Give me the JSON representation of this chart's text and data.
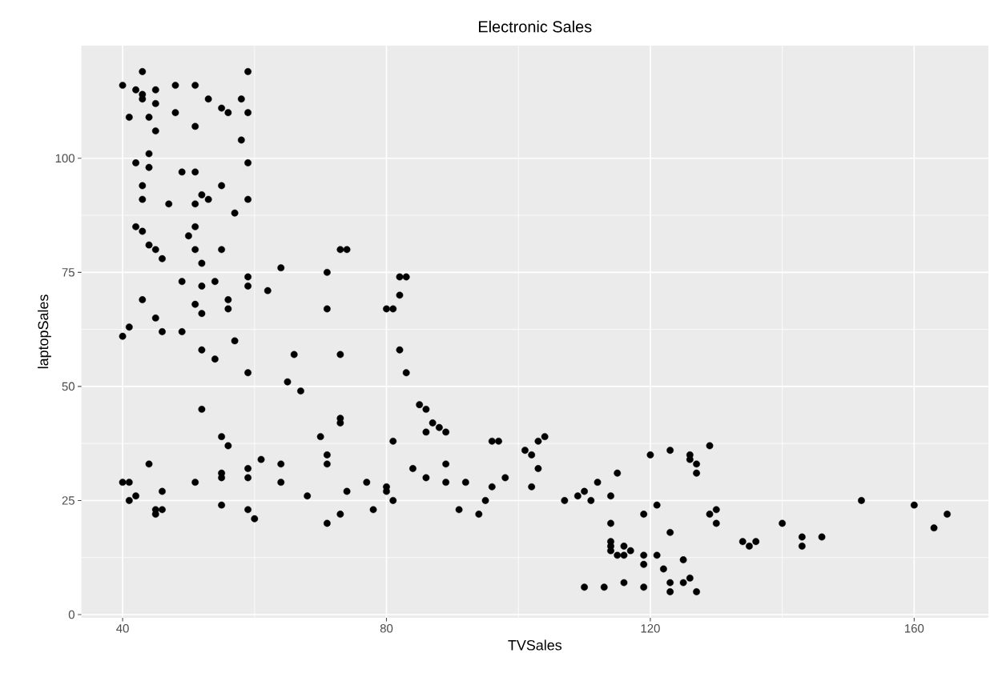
{
  "chart_data": {
    "type": "scatter",
    "title": "Electronic Sales",
    "xlabel": "TVSales",
    "ylabel": "laptopSales",
    "color": "#000000",
    "marker": "circle",
    "grid": true,
    "xlim": [
      33.75,
      171.25
    ],
    "ylim": [
      -0.7,
      124.7
    ],
    "xticks": [
      40,
      80,
      120,
      160
    ],
    "yticks": [
      0,
      25,
      50,
      75,
      100
    ],
    "x": [
      40,
      43,
      42,
      43,
      43,
      45,
      45,
      41,
      44,
      45,
      48,
      48,
      51,
      51,
      53,
      55,
      56,
      58,
      59,
      59,
      58,
      44,
      42,
      44,
      59,
      49,
      51,
      43,
      55,
      43,
      47,
      51,
      52,
      53,
      59,
      57,
      42,
      43,
      51,
      50,
      44,
      45,
      51,
      55,
      46,
      52,
      59,
      59,
      49,
      54,
      52,
      43,
      56,
      51,
      56,
      52,
      45,
      41,
      46,
      49,
      40,
      57,
      52,
      54,
      59,
      52,
      55,
      56,
      44,
      55,
      55,
      59,
      59,
      40,
      41,
      51,
      42,
      41,
      46,
      45,
      46,
      45,
      55,
      59,
      60,
      61,
      64,
      62,
      64,
      64,
      65,
      66,
      67,
      68,
      70,
      71,
      71,
      71,
      71,
      71,
      73,
      74,
      73,
      73,
      73,
      73,
      74,
      77,
      78,
      80,
      81,
      80,
      80,
      81,
      81,
      82,
      83,
      82,
      82,
      83,
      84,
      85,
      86,
      86,
      86,
      87,
      88,
      89,
      89,
      89,
      91,
      92,
      94,
      95,
      96,
      97,
      96,
      98,
      101,
      102,
      102,
      103,
      103,
      104,
      107,
      109,
      110,
      111,
      112,
      110,
      113,
      114,
      114,
      114,
      114,
      114,
      115,
      115,
      116,
      116,
      116,
      117,
      119,
      119,
      119,
      119,
      120,
      121,
      121,
      122,
      123,
      123,
      123,
      123,
      125,
      125,
      126,
      126,
      126,
      127,
      127,
      127,
      129,
      129,
      130,
      130,
      134,
      135,
      136,
      140,
      143,
      143,
      146,
      152,
      160,
      163,
      165
    ],
    "values": [
      116,
      119,
      115,
      114,
      113,
      115,
      112,
      109,
      109,
      106,
      116,
      110,
      116,
      107,
      113,
      111,
      110,
      113,
      119,
      110,
      104,
      101,
      99,
      98,
      99,
      97,
      97,
      94,
      94,
      91,
      90,
      90,
      92,
      91,
      91,
      88,
      85,
      84,
      85,
      83,
      81,
      80,
      80,
      80,
      78,
      77,
      74,
      72,
      73,
      73,
      72,
      69,
      69,
      68,
      67,
      66,
      65,
      63,
      62,
      62,
      61,
      60,
      58,
      56,
      53,
      45,
      39,
      37,
      33,
      31,
      30,
      32,
      30,
      29,
      29,
      29,
      26,
      25,
      27,
      23,
      23,
      22,
      24,
      23,
      21,
      34,
      76,
      71,
      33,
      29,
      51,
      57,
      49,
      26,
      39,
      75,
      67,
      35,
      33,
      20,
      80,
      80,
      57,
      43,
      42,
      22,
      27,
      29,
      23,
      67,
      67,
      28,
      27,
      38,
      25,
      74,
      74,
      70,
      58,
      53,
      32,
      46,
      45,
      40,
      30,
      42,
      41,
      40,
      33,
      29,
      23,
      29,
      22,
      25,
      38,
      38,
      28,
      30,
      36,
      35,
      28,
      38,
      32,
      39,
      25,
      26,
      27,
      25,
      29,
      6,
      6,
      26,
      20,
      16,
      15,
      14,
      31,
      13,
      15,
      13,
      7,
      14,
      22,
      13,
      11,
      6,
      35,
      24,
      13,
      10,
      36,
      18,
      7,
      5,
      12,
      7,
      35,
      34,
      8,
      33,
      31,
      5,
      37,
      22,
      23,
      20,
      16,
      15,
      16,
      20,
      17,
      15,
      17,
      25,
      24,
      19,
      22
    ]
  }
}
